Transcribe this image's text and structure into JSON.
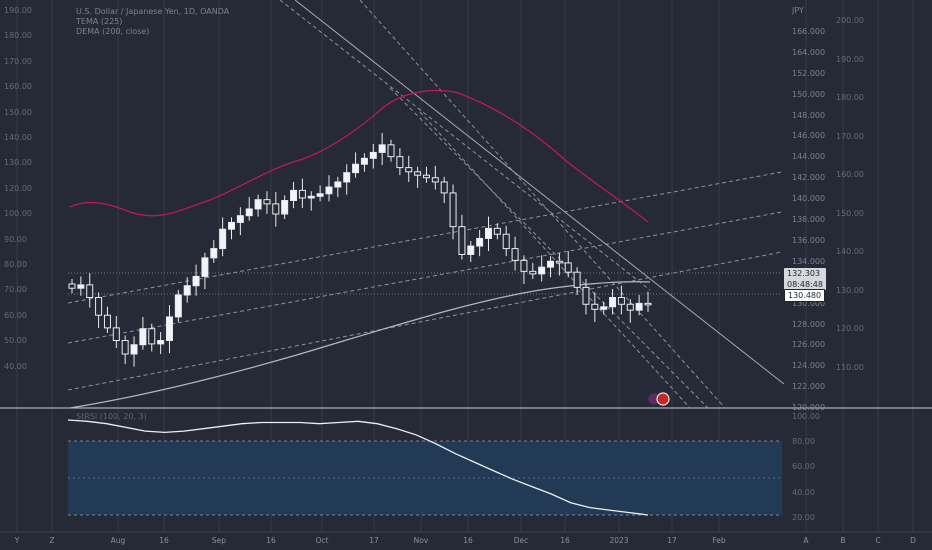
{
  "legend": {
    "title": "U.S. Dollar / Japanese Yen, 1D, OANDA",
    "tema": "TEMA (225)",
    "dema": "DEMA (200, close)",
    "stoch": "StRSI (100, 20, 3)"
  },
  "price_tags": {
    "last": "132.303",
    "countdown": "08:48:48",
    "level": "130.480"
  },
  "inner_axis_unit": "JPY",
  "x_axis_ticks": [
    "Y",
    "Z",
    "Aug",
    "16",
    "Sep",
    "16",
    "Oct",
    "17",
    "Nov",
    "16",
    "Dec",
    "16",
    "2023",
    "17",
    "Feb",
    "A",
    "B",
    "C",
    "D"
  ],
  "left_axis_labels": [
    "190.00",
    "180.00",
    "170.00",
    "160.00",
    "150.00",
    "140.00",
    "130.00",
    "120.00",
    "100.00",
    "90.00",
    "80.00",
    "70.00",
    "60.00",
    "50.00",
    "40.00"
  ],
  "inner_axis_labels": [
    "JPY",
    "166.000",
    "164.000",
    "152.000",
    "150.000",
    "148.000",
    "146.000",
    "144.000",
    "142.000",
    "140.000",
    "138.000",
    "136.000",
    "134.000",
    "132.000",
    "130.000",
    "128.000",
    "126.000",
    "124.000",
    "122.000",
    "120.000"
  ],
  "outer_axis_labels": [
    "200.00",
    "190.00",
    "180.00",
    "170.00",
    "160.00",
    "150.00",
    "140.00",
    "130.00",
    "120.00",
    "110.00"
  ],
  "osc_axis_labels": [
    "100.00",
    "80.00",
    "60.00",
    "40.00",
    "20.00"
  ],
  "colors": {
    "background": "#262a36",
    "candle": "#e9ebef",
    "tema_line": "#c2185b",
    "dema_line": "#b6b8bd",
    "osc_band": "#233a56",
    "osc_line": "#eceef2"
  },
  "chart_data": {
    "type": "candlestick",
    "symbol": "USDJPY",
    "series": [
      {
        "name": "TEMA (225)",
        "type": "line"
      },
      {
        "name": "DEMA (200, close)",
        "type": "line"
      }
    ],
    "candles_close_sample": [
      134.2,
      134.6,
      133.1,
      131.0,
      129.5,
      128.0,
      126.4,
      127.5,
      129.4,
      127.6,
      128.0,
      130.8,
      133.4,
      134.5,
      135.6,
      137.8,
      138.9,
      141.2,
      142.0,
      142.8,
      143.6,
      144.7,
      144.2,
      143.0,
      144.6,
      145.8,
      144.9,
      145.1,
      145.4,
      146.2,
      146.8,
      147.9,
      148.9,
      149.6,
      150.3,
      151.2,
      149.8,
      148.5,
      148.0,
      147.6,
      147.3,
      146.8,
      145.5,
      141.5,
      138.2,
      139.2,
      140.1,
      141.3,
      140.6,
      138.9,
      137.5,
      136.2,
      135.9,
      136.7,
      137.4,
      137.2,
      136.1,
      134.3,
      132.3,
      131.7,
      132.0,
      133.1,
      132.3,
      131.6,
      132.4,
      132.3
    ],
    "last_price": 132.303,
    "level_price": 130.48,
    "y_range": [
      120,
      166
    ],
    "oscillator": {
      "levels": [
        20,
        40,
        60,
        80,
        100
      ],
      "values": [
        97,
        96,
        94,
        91,
        88,
        87,
        88,
        90,
        92,
        94,
        95,
        95,
        95,
        94,
        95,
        96,
        94,
        90,
        85,
        78,
        70,
        63,
        56,
        49,
        43,
        37,
        30,
        26,
        24,
        22,
        20
      ]
    }
  }
}
